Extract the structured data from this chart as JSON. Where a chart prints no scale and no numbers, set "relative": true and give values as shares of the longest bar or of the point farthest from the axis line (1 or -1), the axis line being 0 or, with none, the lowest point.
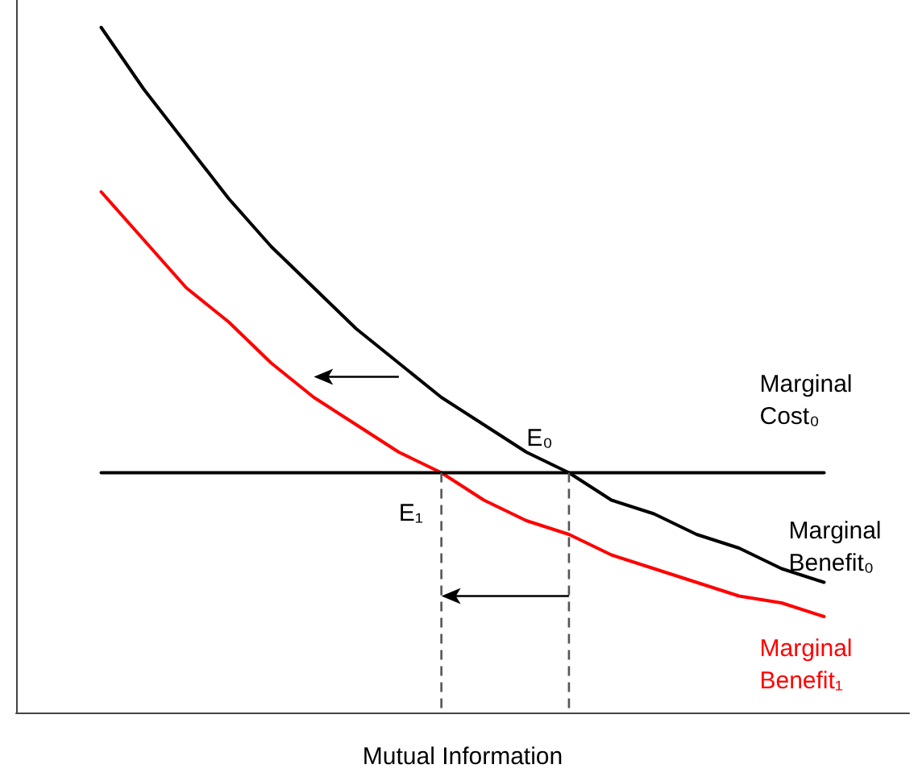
{
  "chart_data": {
    "type": "line",
    "relative": true,
    "xlabel": "Mutual Information",
    "grid": false,
    "legend": false,
    "marker": "none",
    "categories": [
      null,
      null,
      null,
      null,
      null,
      null,
      null,
      null,
      null,
      null,
      null,
      null,
      null,
      null,
      null,
      null,
      null,
      null,
      null,
      null,
      null,
      null
    ],
    "series": [
      {
        "name": "Marginal Benefit₀",
        "color": "#000000",
        "values": [
          null,
          null,
          1,
          0.91,
          0.83,
          0.75,
          0.68,
          0.62,
          0.56,
          0.51,
          0.46,
          0.42,
          0.38,
          0.35,
          0.31,
          0.29,
          0.26,
          0.24,
          0.21,
          0.19,
          null,
          null
        ]
      },
      {
        "name": "Marginal Benefit₁",
        "color": "#ff0000",
        "values": [
          null,
          null,
          0.76,
          0.69,
          0.62,
          0.57,
          0.51,
          0.46,
          0.42,
          0.38,
          0.35,
          0.31,
          0.28,
          0.26,
          0.23,
          0.21,
          0.19,
          0.17,
          0.16,
          0.14,
          null,
          null
        ]
      },
      {
        "name": "Marginal Cost₀",
        "color": "#000000",
        "values": [
          null,
          null,
          0.35,
          0.35,
          0.35,
          0.35,
          0.35,
          0.35,
          0.35,
          0.35,
          0.35,
          0.35,
          0.35,
          0.35,
          0.35,
          0.35,
          0.35,
          0.35,
          0.35,
          0.35,
          null,
          null
        ]
      }
    ],
    "annotations": [
      "E₀",
      "E₁"
    ]
  }
}
